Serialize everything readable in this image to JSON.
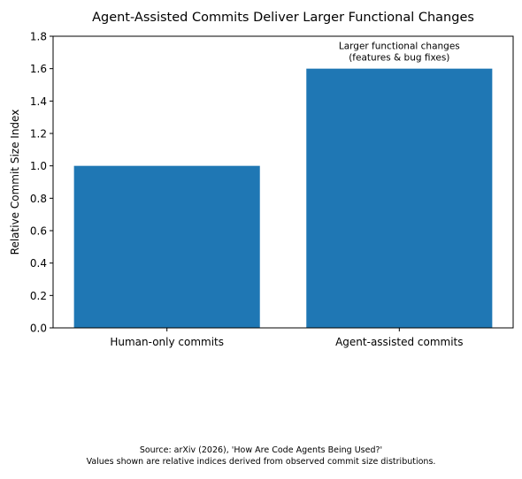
{
  "chart_data": {
    "type": "bar",
    "title": "Agent-Assisted Commits Deliver Larger Functional Changes",
    "xlabel": "",
    "ylabel": "Relative Commit Size Index",
    "categories": [
      "Human-only commits",
      "Agent-assisted commits"
    ],
    "values": [
      1.0,
      1.6
    ],
    "ylim": [
      0,
      1.8
    ],
    "yticks": [
      0.0,
      0.2,
      0.4,
      0.6,
      0.8,
      1.0,
      1.2,
      1.4,
      1.6,
      1.8
    ],
    "ytick_labels": [
      "0.0",
      "0.2",
      "0.4",
      "0.6",
      "0.8",
      "1.0",
      "1.2",
      "1.4",
      "1.6",
      "1.8"
    ],
    "bar_color": "#1f77b4",
    "grid": false,
    "annotations": [
      {
        "category": "Agent-assisted commits",
        "lines": [
          "Larger functional changes",
          "(features & bug fixes)"
        ]
      }
    ]
  },
  "footer": {
    "source_line": "Source: arXiv (2026), 'How Are Code Agents Being Used?'",
    "note_line": "Values shown are relative indices derived from observed commit size distributions."
  }
}
